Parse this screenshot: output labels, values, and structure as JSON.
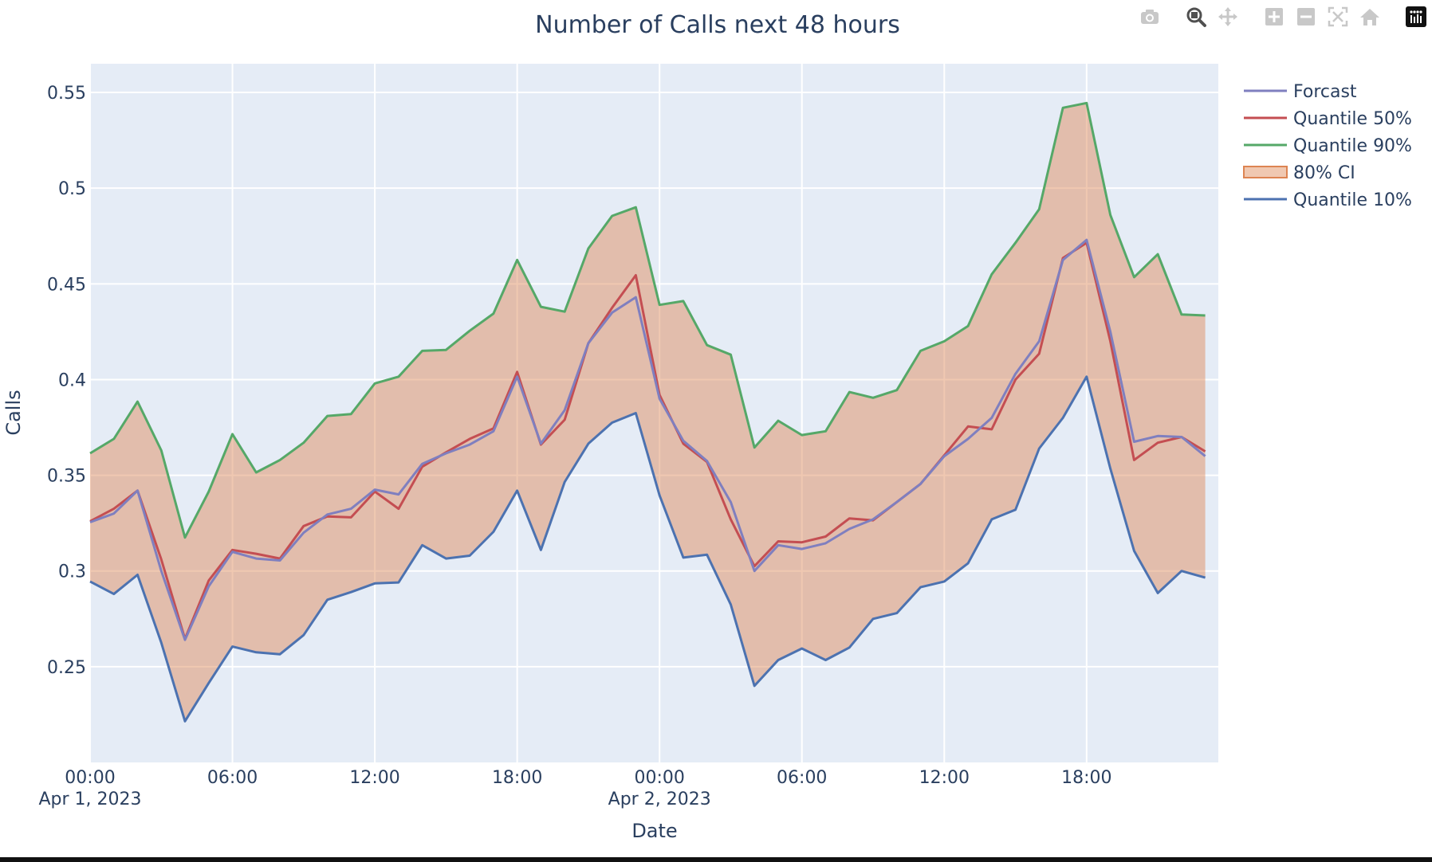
{
  "modebar": {
    "buttons": [
      {
        "name": "camera-icon",
        "icon": "camera"
      },
      {
        "name": "zoom-icon",
        "icon": "zoom"
      },
      {
        "name": "pan-icon",
        "icon": "pan"
      },
      {
        "name": "zoom-in-icon",
        "icon": "plus"
      },
      {
        "name": "zoom-out-icon",
        "icon": "minus"
      },
      {
        "name": "autoscale-icon",
        "icon": "autoscale"
      },
      {
        "name": "reset-axes-icon",
        "icon": "home"
      },
      {
        "name": "plotly-logo-icon",
        "icon": "plotly"
      }
    ]
  },
  "chart_data": {
    "type": "line",
    "title": "Number of Calls next 48 hours",
    "xlabel": "Date",
    "ylabel": "Calls",
    "ylim": [
      0.2,
      0.565
    ],
    "xlim": [
      "2023-04-01 00:00",
      "2023-04-02 23:00"
    ],
    "x_tick_labels": [
      {
        "time": "00:00",
        "date": "Apr 1, 2023"
      },
      {
        "time": "06:00",
        "date": ""
      },
      {
        "time": "12:00",
        "date": ""
      },
      {
        "time": "18:00",
        "date": ""
      },
      {
        "time": "00:00",
        "date": "Apr 2, 2023"
      },
      {
        "time": "06:00",
        "date": ""
      },
      {
        "time": "12:00",
        "date": ""
      },
      {
        "time": "18:00",
        "date": ""
      }
    ],
    "y_tick_labels": [
      "0.25",
      "0.3",
      "0.35",
      "0.4",
      "0.45",
      "0.5",
      "0.55"
    ],
    "y_tick_values": [
      0.25,
      0.3,
      0.35,
      0.4,
      0.45,
      0.5,
      0.55
    ],
    "grid": true,
    "legend_position": "top-right",
    "background": "#e5ecf6",
    "x_start": "2023-04-01 00:00",
    "x_step": "1 hour",
    "series": [
      {
        "name": "Forcast",
        "color": "#7f7fbf",
        "values": [
          0.3255,
          0.33,
          0.342,
          0.3,
          0.264,
          0.292,
          0.31,
          0.3065,
          0.3055,
          0.32,
          0.3295,
          0.3325,
          0.3425,
          0.34,
          0.356,
          0.3615,
          0.366,
          0.373,
          0.4015,
          0.3665,
          0.384,
          0.419,
          0.435,
          0.443,
          0.39,
          0.368,
          0.3575,
          0.336,
          0.3,
          0.3135,
          0.3115,
          0.3145,
          0.322,
          0.327,
          0.336,
          0.3455,
          0.36,
          0.369,
          0.38,
          0.403,
          0.42,
          0.4625,
          0.473,
          0.425,
          0.3675,
          0.3705,
          0.37,
          0.36
        ]
      },
      {
        "name": "Quantile 50%",
        "color": "#c44e52",
        "values": [
          0.326,
          0.3325,
          0.342,
          0.306,
          0.2645,
          0.295,
          0.311,
          0.309,
          0.3065,
          0.3235,
          0.3285,
          0.328,
          0.3415,
          0.3325,
          0.3545,
          0.362,
          0.369,
          0.3745,
          0.404,
          0.366,
          0.379,
          0.419,
          0.4375,
          0.4545,
          0.392,
          0.3665,
          0.357,
          0.327,
          0.3025,
          0.3155,
          0.315,
          0.318,
          0.3275,
          0.3265,
          0.336,
          0.3455,
          0.3605,
          0.3755,
          0.374,
          0.4,
          0.4135,
          0.4635,
          0.4715,
          0.42,
          0.358,
          0.367,
          0.37,
          0.3625
        ]
      },
      {
        "name": "Quantile 90%",
        "color": "#55a868",
        "values": [
          0.3615,
          0.369,
          0.3885,
          0.363,
          0.3175,
          0.3415,
          0.3715,
          0.3515,
          0.358,
          0.367,
          0.381,
          0.382,
          0.398,
          0.4015,
          0.415,
          0.4155,
          0.4255,
          0.4345,
          0.4625,
          0.438,
          0.4355,
          0.4685,
          0.4855,
          0.49,
          0.439,
          0.441,
          0.418,
          0.413,
          0.3645,
          0.3785,
          0.371,
          0.373,
          0.3935,
          0.3905,
          0.3945,
          0.415,
          0.42,
          0.428,
          0.455,
          0.4715,
          0.489,
          0.542,
          0.5445,
          0.486,
          0.4535,
          0.4655,
          0.434,
          0.4335
        ]
      },
      {
        "name": "80% CI",
        "color": "#dd8452",
        "fill": "rgba(221,132,82,0.45)",
        "is_band": true
      },
      {
        "name": "Quantile 10%",
        "color": "#4c72b0",
        "values": [
          0.2945,
          0.288,
          0.298,
          0.2625,
          0.2215,
          0.2415,
          0.2605,
          0.2575,
          0.2565,
          0.2665,
          0.285,
          0.289,
          0.2935,
          0.294,
          0.3135,
          0.3065,
          0.308,
          0.3205,
          0.342,
          0.311,
          0.3465,
          0.3665,
          0.3775,
          0.3825,
          0.3395,
          0.307,
          0.3085,
          0.2825,
          0.24,
          0.2535,
          0.2595,
          0.2535,
          0.26,
          0.275,
          0.278,
          0.2915,
          0.2945,
          0.304,
          0.327,
          0.332,
          0.364,
          0.38,
          0.4015,
          0.3535,
          0.3105,
          0.2885,
          0.3,
          0.2965
        ]
      }
    ]
  }
}
